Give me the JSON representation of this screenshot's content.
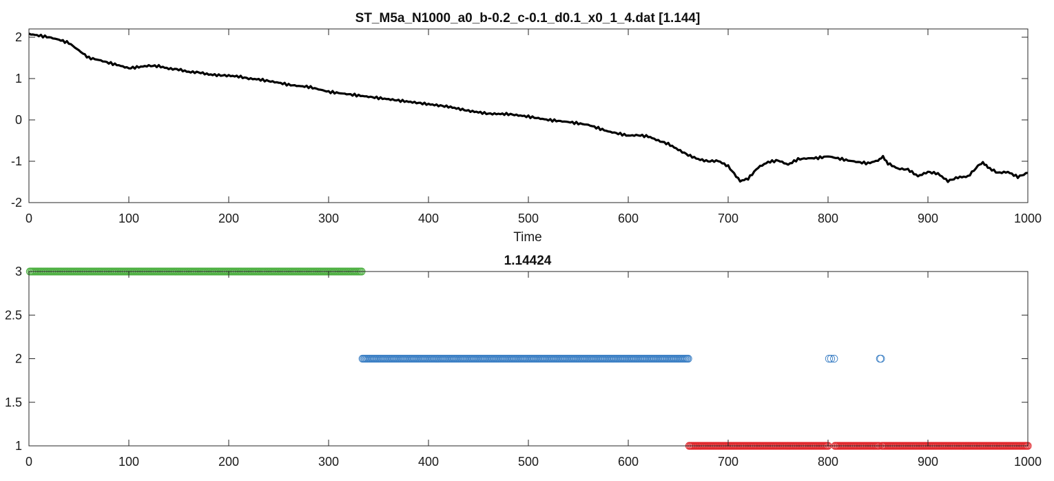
{
  "chart_data": [
    {
      "type": "line",
      "title": "ST_M5a_N1000_a0_b-0.2_c-0.1_d0.1_x0_1_4.dat [1.144]",
      "xlabel": "Time",
      "ylabel": "",
      "xlim": [
        0,
        1000
      ],
      "ylim": [
        -2,
        2.2
      ],
      "xticks": [
        "0",
        "100",
        "200",
        "300",
        "400",
        "500",
        "600",
        "700",
        "800",
        "900",
        "1000"
      ],
      "yticks": [
        "-2",
        "-1",
        "0",
        "1",
        "2"
      ],
      "grid": false,
      "series": [
        {
          "color": "#000000",
          "x": [
            0,
            10,
            20,
            30,
            40,
            50,
            60,
            70,
            80,
            90,
            100,
            110,
            120,
            130,
            140,
            150,
            160,
            170,
            180,
            190,
            200,
            210,
            220,
            230,
            240,
            250,
            260,
            270,
            280,
            290,
            300,
            320,
            340,
            360,
            380,
            400,
            420,
            440,
            460,
            480,
            500,
            520,
            540,
            560,
            580,
            600,
            610,
            620,
            630,
            640,
            650,
            660,
            670,
            680,
            690,
            700,
            712,
            720,
            730,
            740,
            750,
            760,
            770,
            780,
            790,
            800,
            810,
            820,
            830,
            840,
            850,
            855,
            860,
            870,
            880,
            890,
            900,
            910,
            920,
            930,
            940,
            950,
            955,
            960,
            970,
            980,
            990,
            1000
          ],
          "y": [
            2.08,
            2.04,
            2.0,
            1.94,
            1.86,
            1.68,
            1.5,
            1.45,
            1.38,
            1.32,
            1.25,
            1.28,
            1.31,
            1.3,
            1.24,
            1.22,
            1.16,
            1.15,
            1.1,
            1.08,
            1.07,
            1.05,
            1.0,
            0.98,
            0.94,
            0.9,
            0.85,
            0.82,
            0.8,
            0.74,
            0.68,
            0.62,
            0.56,
            0.5,
            0.44,
            0.38,
            0.32,
            0.22,
            0.15,
            0.14,
            0.08,
            0.0,
            -0.05,
            -0.12,
            -0.28,
            -0.38,
            -0.37,
            -0.4,
            -0.5,
            -0.58,
            -0.72,
            -0.85,
            -0.95,
            -1.0,
            -0.99,
            -1.12,
            -1.48,
            -1.42,
            -1.15,
            -1.02,
            -0.98,
            -1.08,
            -0.95,
            -0.93,
            -0.92,
            -0.88,
            -0.93,
            -0.98,
            -1.02,
            -1.05,
            -0.98,
            -0.9,
            -1.05,
            -1.18,
            -1.2,
            -1.36,
            -1.26,
            -1.3,
            -1.48,
            -1.39,
            -1.37,
            -1.12,
            -1.02,
            -1.15,
            -1.28,
            -1.26,
            -1.38,
            -1.28
          ]
        }
      ]
    },
    {
      "type": "scatter",
      "title": "1.14424",
      "xlabel": "",
      "ylabel": "",
      "xlim": [
        0,
        1000
      ],
      "ylim": [
        1,
        3
      ],
      "xticks": [
        "0",
        "100",
        "200",
        "300",
        "400",
        "500",
        "600",
        "700",
        "800",
        "900",
        "1000"
      ],
      "yticks": [
        "1",
        "1.5",
        "2",
        "2.5",
        "3"
      ],
      "grid": false,
      "marker": "open-circle",
      "series": [
        {
          "color": "#4caf40",
          "value": 3,
          "ranges": [
            [
              1,
              333
            ]
          ],
          "points": []
        },
        {
          "color": "#3b7fc4",
          "value": 2,
          "ranges": [
            [
              334,
              660
            ]
          ],
          "points": [
            801,
            803,
            806,
            852,
            853
          ]
        },
        {
          "color": "#e0262b",
          "value": 1,
          "ranges": [
            [
              661,
              800
            ],
            [
              807,
              851
            ],
            [
              854,
              1000
            ]
          ],
          "points": []
        }
      ]
    }
  ]
}
